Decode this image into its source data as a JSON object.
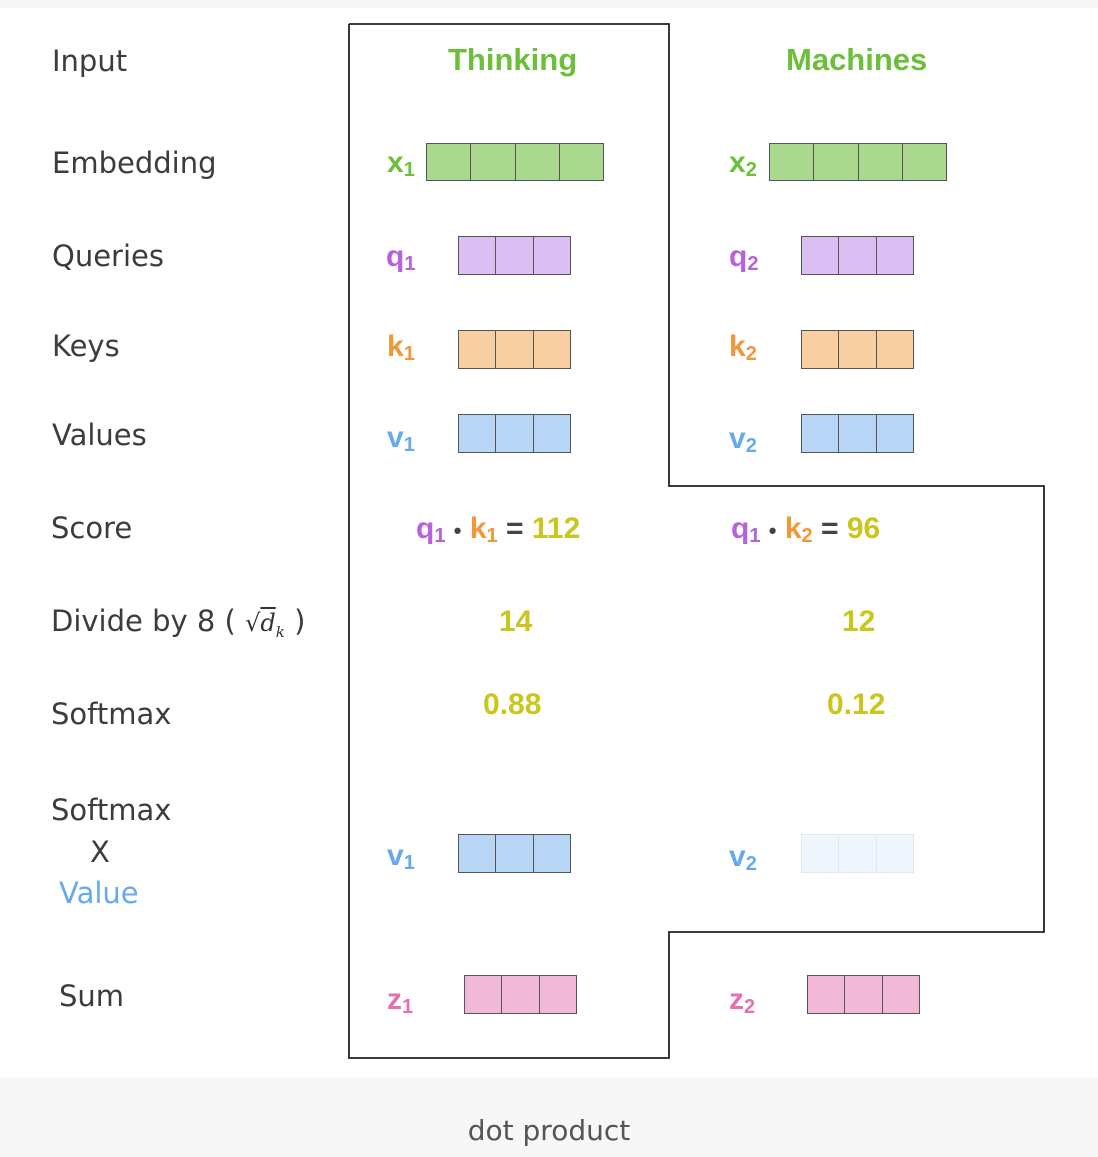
{
  "rows": {
    "input": "Input",
    "embedding": "Embedding",
    "queries": "Queries",
    "keys": "Keys",
    "values": "Values",
    "score": "Score",
    "divide": "Divide by 8 (",
    "divide_close": ")",
    "sqrt_symbol": "√",
    "sqrt_var": "d",
    "sqrt_sub": "k",
    "softmax": "Softmax",
    "softmax_x": "X",
    "softmax_value": "Value",
    "sum": "Sum"
  },
  "colors": {
    "word": "#6cbf3b",
    "x": "#6cbf3b",
    "q": "#b761dc",
    "k": "#f0973a",
    "v": "#66a9ec",
    "z": "#e570b1",
    "number": "#c9c61e"
  },
  "words": [
    {
      "word": "Thinking",
      "x": "x",
      "x_sub": "1",
      "q": "q",
      "q_sub": "1",
      "k": "k",
      "k_sub": "1",
      "v": "v",
      "v_sub": "1",
      "score_q": "q",
      "score_q_sub": "1",
      "score_dot": "•",
      "score_k": "k",
      "score_k_sub": "1",
      "score_eq": "=",
      "score": "112",
      "divided": "14",
      "softmax": "0.88",
      "weighted_v": "v",
      "weighted_v_sub": "1",
      "z": "z",
      "z_sub": "1"
    },
    {
      "word": "Machines",
      "x": "x",
      "x_sub": "2",
      "q": "q",
      "q_sub": "2",
      "k": "k",
      "k_sub": "2",
      "v": "v",
      "v_sub": "2",
      "score_q": "q",
      "score_q_sub": "1",
      "score_dot": "•",
      "score_k": "k",
      "score_k_sub": "2",
      "score_eq": "=",
      "score": "96",
      "divided": "12",
      "softmax": "0.12",
      "weighted_v": "v",
      "weighted_v_sub": "2",
      "z": "z",
      "z_sub": "2"
    }
  ],
  "caption": "dot product"
}
